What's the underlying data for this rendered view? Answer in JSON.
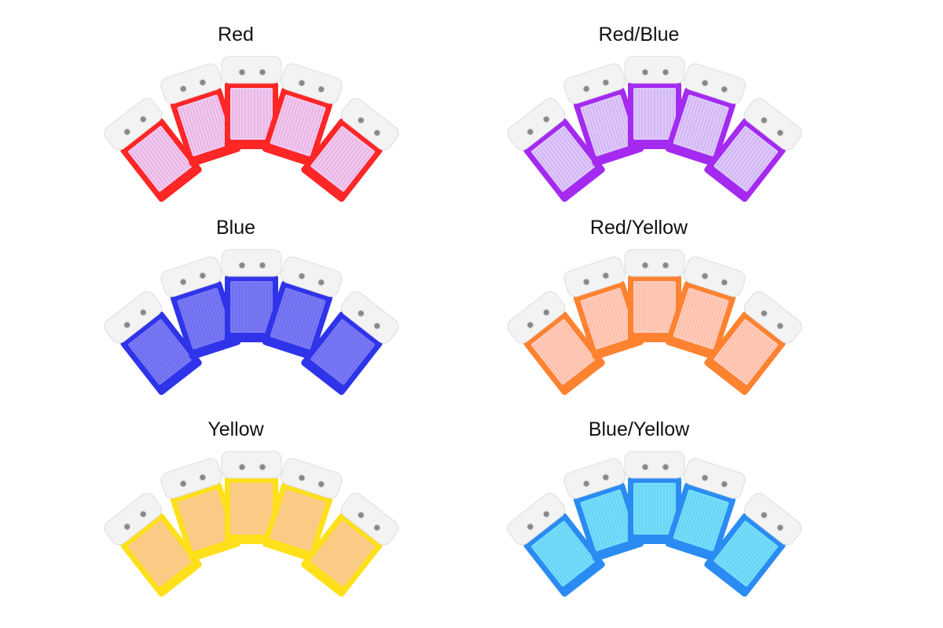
{
  "variants": [
    {
      "label": "Red",
      "edge": "#ff2626",
      "inner": "#eccaf6"
    },
    {
      "label": "Red/Blue",
      "edge": "#a42af0",
      "inner": "#dccaf8"
    },
    {
      "label": "Blue",
      "edge": "#2f34ea",
      "inner": "#7a78f2"
    },
    {
      "label": "Red/Yellow",
      "edge": "#ff8230",
      "inner": "#ffcabb"
    },
    {
      "label": "Yellow",
      "edge": "#ffe01a",
      "inner": "#f9c98c"
    },
    {
      "label": "Blue/Yellow",
      "edge": "#2a8cf2",
      "inner": "#74def8"
    }
  ]
}
